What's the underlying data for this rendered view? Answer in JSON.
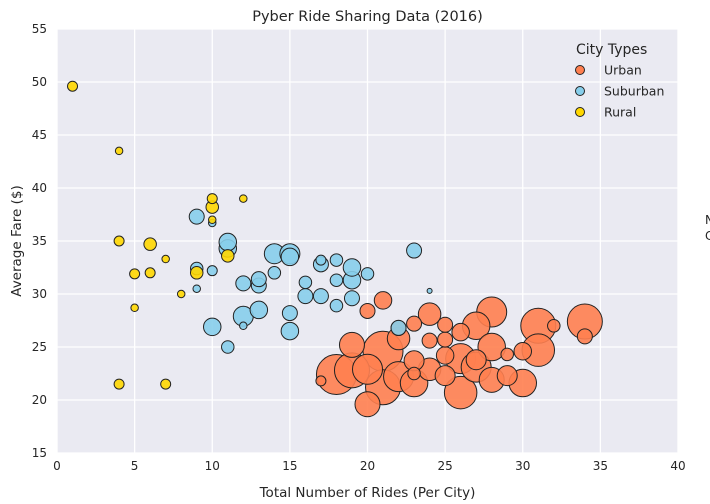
{
  "chart_data": {
    "type": "scatter",
    "title": "Pyber Ride Sharing Data (2016)",
    "xlabel": "Total Number of Rides (Per City)",
    "ylabel": "Average Fare ($)",
    "xlim": [
      0,
      40
    ],
    "ylim": [
      15,
      55
    ],
    "xticks": [
      0,
      5,
      10,
      15,
      20,
      25,
      30,
      35,
      40
    ],
    "yticks": [
      15,
      20,
      25,
      30,
      35,
      40,
      45,
      50,
      55
    ],
    "grid": true,
    "legend": {
      "title": "City Types",
      "position": "top-right"
    },
    "annotations": [
      {
        "text": "N",
        "x": 43.5,
        "y": 36.8
      },
      {
        "text": "C",
        "x": 43.5,
        "y": 35.5
      }
    ],
    "series": [
      {
        "name": "Urban",
        "color": "#FF7F50",
        "points": [
          [
            17,
            21.8,
            4
          ],
          [
            18,
            22.4,
            16
          ],
          [
            19,
            22.8,
            14
          ],
          [
            19,
            25.2,
            10
          ],
          [
            20,
            19.6,
            10
          ],
          [
            20,
            22.9,
            12
          ],
          [
            20,
            28.4,
            6
          ],
          [
            21,
            21.2,
            14
          ],
          [
            21,
            24.6,
            16
          ],
          [
            21,
            29.4,
            7
          ],
          [
            22,
            22.2,
            12
          ],
          [
            22,
            25.8,
            9
          ],
          [
            22,
            26.8,
            6
          ],
          [
            23,
            21.6,
            11
          ],
          [
            23,
            23.7,
            8
          ],
          [
            23,
            27.2,
            6
          ],
          [
            24,
            22.9,
            9
          ],
          [
            24,
            28.1,
            9
          ],
          [
            24,
            25.6,
            6
          ],
          [
            25,
            22.3,
            8
          ],
          [
            25,
            25.7,
            6
          ],
          [
            25,
            27.1,
            6
          ],
          [
            26,
            20.7,
            13
          ],
          [
            26,
            23.9,
            12
          ],
          [
            26,
            26.4,
            7
          ],
          [
            27,
            23.1,
            12
          ],
          [
            27,
            27.0,
            11
          ],
          [
            28,
            21.9,
            10
          ],
          [
            28,
            25.0,
            11
          ],
          [
            28,
            28.3,
            12
          ],
          [
            29,
            22.3,
            8
          ],
          [
            29,
            24.3,
            5
          ],
          [
            30,
            21.6,
            11
          ],
          [
            30,
            24.6,
            7
          ],
          [
            31,
            24.7,
            13
          ],
          [
            31,
            27.0,
            14
          ],
          [
            32,
            27.0,
            5
          ],
          [
            34,
            26.0,
            6
          ],
          [
            34,
            27.4,
            14
          ],
          [
            23,
            22.5,
            5
          ],
          [
            27,
            23.8,
            8
          ],
          [
            25,
            24.2,
            7
          ]
        ]
      },
      {
        "name": "Suburban",
        "color": "#87CEEB",
        "points": [
          [
            9,
            32.4,
            5
          ],
          [
            9,
            37.3,
            6
          ],
          [
            9,
            30.5,
            3
          ],
          [
            10,
            32.2,
            4
          ],
          [
            10,
            26.9,
            7
          ],
          [
            10,
            36.7,
            3
          ],
          [
            11,
            34.3,
            7
          ],
          [
            11,
            25.0,
            5
          ],
          [
            11,
            34.9,
            7
          ],
          [
            12,
            27.0,
            3
          ],
          [
            12,
            31.0,
            6
          ],
          [
            12,
            27.9,
            8
          ],
          [
            13,
            30.8,
            6
          ],
          [
            13,
            28.5,
            7
          ],
          [
            13,
            31.4,
            6
          ],
          [
            14,
            33.8,
            8
          ],
          [
            14,
            32.0,
            5
          ],
          [
            15,
            33.8,
            8
          ],
          [
            15,
            28.2,
            6
          ],
          [
            15,
            26.5,
            7
          ],
          [
            15,
            33.5,
            7
          ],
          [
            16,
            31.1,
            5
          ],
          [
            16,
            29.8,
            6
          ],
          [
            17,
            33.2,
            4
          ],
          [
            17,
            29.8,
            6
          ],
          [
            17,
            32.8,
            6
          ],
          [
            18,
            28.9,
            5
          ],
          [
            18,
            31.3,
            5
          ],
          [
            18,
            33.2,
            5
          ],
          [
            19,
            29.6,
            6
          ],
          [
            19,
            31.3,
            7
          ],
          [
            19,
            32.5,
            7
          ],
          [
            20,
            31.9,
            5
          ],
          [
            22,
            26.8,
            6
          ],
          [
            23,
            34.1,
            6
          ],
          [
            24,
            30.3,
            2
          ]
        ]
      },
      {
        "name": "Rural",
        "color": "#FFD700",
        "points": [
          [
            1,
            49.6,
            4
          ],
          [
            4,
            43.5,
            3
          ],
          [
            4,
            35.0,
            4
          ],
          [
            4,
            21.5,
            4
          ],
          [
            5,
            31.9,
            4
          ],
          [
            5,
            28.7,
            3
          ],
          [
            6,
            32.0,
            4
          ],
          [
            6,
            34.7,
            5
          ],
          [
            7,
            33.3,
            3
          ],
          [
            7,
            21.5,
            4
          ],
          [
            8,
            30.0,
            3
          ],
          [
            9,
            32.0,
            5
          ],
          [
            10,
            39.0,
            4
          ],
          [
            10,
            38.2,
            5
          ],
          [
            10,
            37.0,
            3
          ],
          [
            11,
            33.6,
            5
          ],
          [
            12,
            39.0,
            3
          ]
        ]
      }
    ]
  }
}
